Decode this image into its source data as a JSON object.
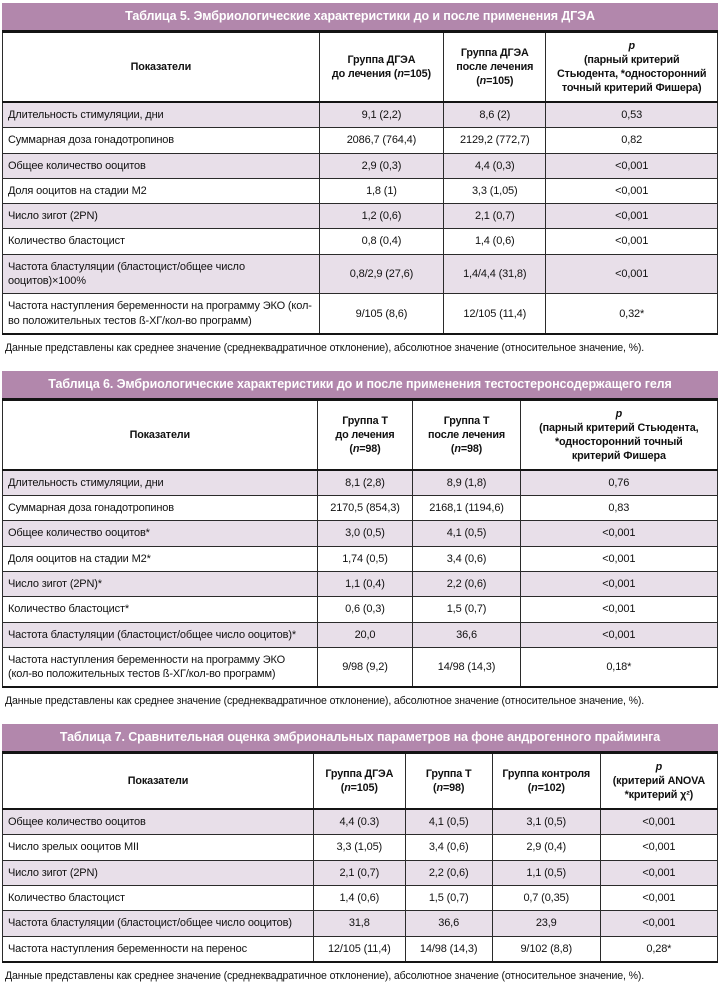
{
  "colors": {
    "title_bar": "#b287ac",
    "stripe_row": "#e8dfe9",
    "border": "#141414",
    "title_text": "#ffffff"
  },
  "tables": [
    {
      "title": "Таблица 5. Эмбриологические характеристики до и после применения ДГЭА",
      "columns": [
        {
          "label": "Показатели",
          "width": "44.3%"
        },
        {
          "label": "Группа ДГЭА\nдо лечения (n=105)",
          "width": "17.4%"
        },
        {
          "label": "Группа ДГЭА\nпосле лечения\n(n=105)",
          "width": "14.3%"
        },
        {
          "label": "p\n(парный критерий\nСтьюдента, *односторонний\nточный критерий Фишера)",
          "width": "24.0%"
        }
      ],
      "rows": [
        [
          "Длительность стимуляции, дни",
          "9,1 (2,2)",
          "8,6 (2)",
          "0,53"
        ],
        [
          "Суммарная доза гонадотропинов",
          "2086,7 (764,4)",
          "2129,2 (772,7)",
          "0,82"
        ],
        [
          "Общее количество ооцитов",
          "2,9 (0,3)",
          "4,4 (0,3)",
          "<0,001"
        ],
        [
          "Доля ооцитов на стадии М2",
          "1,8 (1)",
          "3,3 (1,05)",
          "<0,001"
        ],
        [
          "Число зигот (2PN)",
          "1,2 (0,6)",
          "2,1 (0,7)",
          "<0,001"
        ],
        [
          "Количество бластоцист",
          "0,8 (0,4)",
          "1,4 (0,6)",
          "<0,001"
        ],
        [
          "Частота бластуляции (бластоцист/общее число ооцитов)×100%",
          "0,8/2,9 (27,6)",
          "1,4/4,4 (31,8)",
          "<0,001"
        ],
        [
          "Частота наступления беременности на программу ЭКО (кол-во положительных тестов ß-ХГ/кол-во программ)",
          "9/105 (8,6)",
          "12/105 (11,4)",
          "0,32*"
        ]
      ],
      "footnote": "Данные представлены как среднее значение (среднеквадратичное отклонение), абсолютное значение (относительное значение, %)."
    },
    {
      "title": "Таблица 6. Эмбриологические характеристики до и после применения тестостеронсодержащего геля",
      "columns": [
        {
          "label": "Показатели",
          "width": "44.0%"
        },
        {
          "label": "Группа Т\nдо лечения\n(n=98)",
          "width": "13.4%"
        },
        {
          "label": "Группа Т\nпосле лечения\n(n=98)",
          "width": "15.0%"
        },
        {
          "label": "p\n(парный критерий Стьюдента,\n*односторонний точный\nкритерий Фишера",
          "width": "27.6%"
        }
      ],
      "rows": [
        [
          "Длительность стимуляции, дни",
          "8,1 (2,8)",
          "8,9 (1,8)",
          "0,76"
        ],
        [
          "Суммарная доза гонадотропинов",
          "2170,5 (854,3)",
          "2168,1 (1194,6)",
          "0,83"
        ],
        [
          "Общее количество ооцитов*",
          "3,0 (0,5)",
          "4,1 (0,5)",
          "<0,001"
        ],
        [
          "Доля ооцитов на стадии М2*",
          "1,74 (0,5)",
          "3,4 (0,6)",
          "<0,001"
        ],
        [
          "Число зигот (2PN)*",
          "1,1 (0,4)",
          "2,2 (0,6)",
          "<0,001"
        ],
        [
          "Количество бластоцист*",
          "0,6 (0,3)",
          "1,5 (0,7)",
          "<0,001"
        ],
        [
          "Частота бластуляции (бластоцист/общее число ооцитов)*",
          "20,0",
          "36,6",
          "<0,001"
        ],
        [
          "Частота наступления беременности на программу ЭКО (кол-во положительных тестов ß-ХГ/кол-во программ)",
          "9/98 (9,2)",
          "14/98 (14,3)",
          "0,18*"
        ]
      ],
      "footnote": "Данные представлены как среднее значение (среднеквадратичное отклонение), абсолютное значение (относительное значение, %)."
    },
    {
      "title": "Таблица 7. Сравнительная оценка эмбриональных параметров на фоне андрогенного прайминга",
      "columns": [
        {
          "label": "Показатели",
          "width": "43.5%"
        },
        {
          "label": "Группа ДГЭА\n(n=105)",
          "width": "12.8%"
        },
        {
          "label": "Группа Т\n(n=98)",
          "width": "12.2%"
        },
        {
          "label": "Группа контроля\n(n=102)",
          "width": "15.1%"
        },
        {
          "label": "p\n(критерий ANOVA\n*критерий χ²)",
          "width": "16.4%"
        }
      ],
      "rows": [
        [
          "Общее количество ооцитов",
          "4,4 (0.3)",
          "4,1 (0,5)",
          "3,1 (0,5)",
          "<0,001"
        ],
        [
          "Число зрелых ооцитов MII",
          "3,3 (1,05)",
          "3,4 (0,6)",
          "2,9 (0,4)",
          "<0,001"
        ],
        [
          "Число зигот (2PN)",
          "2,1 (0,7)",
          "2,2 (0,6)",
          "1,1 (0,5)",
          "<0,001"
        ],
        [
          "Количество бластоцист",
          "1,4 (0,6)",
          "1,5 (0,7)",
          "0,7 (0,35)",
          "<0,001"
        ],
        [
          "Частота бластуляции (бластоцист/общее число ооцитов)",
          "31,8",
          "36,6",
          "23,9",
          "<0,001"
        ],
        [
          "Частота наступления беременности на перенос",
          "12/105 (11,4)",
          "14/98 (14,3)",
          "9/102 (8,8)",
          "0,28*"
        ]
      ],
      "footnote": "Данные представлены как среднее значение (среднеквадратичное отклонение), абсолютное значение (относительное значение, %)."
    }
  ]
}
